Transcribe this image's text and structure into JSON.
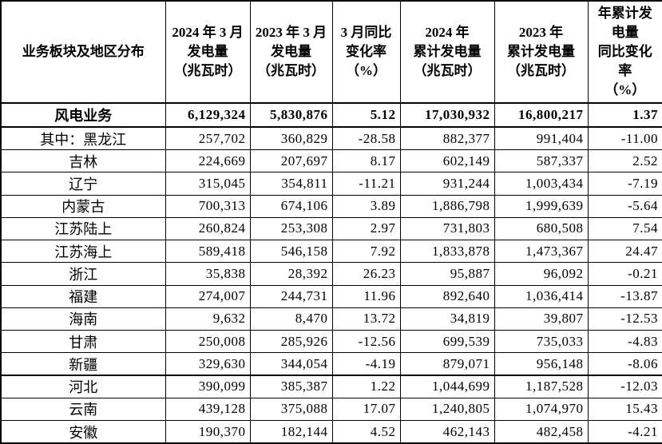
{
  "table": {
    "columns": [
      {
        "label": "业务板块及地区分布"
      },
      {
        "label": "2024 年 3 月\n发电量\n（兆瓦时）"
      },
      {
        "label": "2023 年 3 月\n发电量\n（兆瓦时）"
      },
      {
        "label": "3 月同比\n变化率\n（%）"
      },
      {
        "label": "2024 年\n累计发电量\n（兆瓦时）"
      },
      {
        "label": "2023 年\n累计发电量\n（兆瓦时）"
      },
      {
        "label": "年累计发\n电量\n同比变化\n率\n（%）"
      }
    ],
    "summary": {
      "label": "风电业务",
      "values": [
        "6,129,324",
        "5,830,876",
        "5.12",
        "17,030,932",
        "16,800,217",
        "1.37"
      ]
    },
    "rows": [
      {
        "label": "其中：黑龙江",
        "values": [
          "257,702",
          "360,829",
          "-28.58",
          "882,377",
          "991,404",
          "-11.00"
        ],
        "group_end": false
      },
      {
        "label": "吉林",
        "values": [
          "224,669",
          "207,697",
          "8.17",
          "602,149",
          "587,337",
          "2.52"
        ],
        "group_end": false
      },
      {
        "label": "辽宁",
        "values": [
          "315,045",
          "354,811",
          "-11.21",
          "931,244",
          "1,003,434",
          "-7.19"
        ],
        "group_end": false
      },
      {
        "label": "内蒙古",
        "values": [
          "700,313",
          "674,106",
          "3.89",
          "1,886,798",
          "1,999,639",
          "-5.64"
        ],
        "group_end": false
      },
      {
        "label": "江苏陆上",
        "values": [
          "260,824",
          "253,308",
          "2.97",
          "731,803",
          "680,508",
          "7.54"
        ],
        "group_end": false
      },
      {
        "label": "江苏海上",
        "values": [
          "589,418",
          "546,158",
          "7.92",
          "1,833,878",
          "1,473,367",
          "24.47"
        ],
        "group_end": false
      },
      {
        "label": "浙江",
        "values": [
          "35,838",
          "28,392",
          "26.23",
          "95,887",
          "96,092",
          "-0.21"
        ],
        "group_end": false
      },
      {
        "label": "福建",
        "values": [
          "274,007",
          "244,731",
          "11.96",
          "892,640",
          "1,036,414",
          "-13.87"
        ],
        "group_end": false
      },
      {
        "label": "海南",
        "values": [
          "9,632",
          "8,470",
          "13.72",
          "34,819",
          "39,807",
          "-12.53"
        ],
        "group_end": false
      },
      {
        "label": "甘肃",
        "values": [
          "250,008",
          "285,926",
          "-12.56",
          "699,539",
          "735,033",
          "-4.83"
        ],
        "group_end": false
      },
      {
        "label": "新疆",
        "values": [
          "329,630",
          "344,054",
          "-4.19",
          "879,071",
          "956,148",
          "-8.06"
        ],
        "group_end": true
      },
      {
        "label": "河北",
        "values": [
          "390,099",
          "385,387",
          "1.22",
          "1,044,699",
          "1,187,528",
          "-12.03"
        ],
        "group_end": false
      },
      {
        "label": "云南",
        "values": [
          "439,128",
          "375,088",
          "17.07",
          "1,240,805",
          "1,074,970",
          "15.43"
        ],
        "group_end": false
      },
      {
        "label": "安徽",
        "values": [
          "190,370",
          "182,144",
          "4.52",
          "462,143",
          "482,458",
          "-4.21"
        ],
        "group_end": false
      }
    ]
  }
}
